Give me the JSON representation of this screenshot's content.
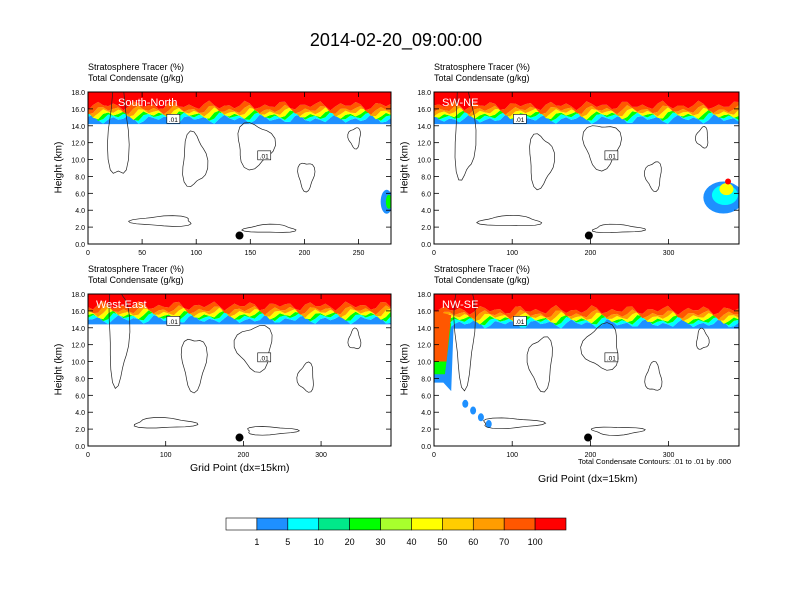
{
  "title": "2014-02-20_09:00:00",
  "panel_subtitle_1": "Stratosphere Tracer   (%)",
  "panel_subtitle_2": "Total Condensate   (g/kg)",
  "y_axis_label": "Height (km)",
  "x_axis_label": "Grid Point (dx=15km)",
  "contour_footnote": "Total Condensate Contours: .01 to .01 by .000",
  "contour_level_label": ".01",
  "colors": {
    "levels": [
      "#ffffff",
      "#1e90ff",
      "#00ffff",
      "#00e98a",
      "#00ff00",
      "#a8ff2d",
      "#ffff00",
      "#ffcd00",
      "#ff9d00",
      "#ff5700",
      "#ff0000"
    ]
  },
  "colorbar_labels": [
    "1",
    "5",
    "10",
    "20",
    "30",
    "40",
    "50",
    "60",
    "70",
    "100"
  ],
  "chart_data": [
    {
      "type": "heatmap",
      "name": "South-North",
      "xlim": [
        0,
        280
      ],
      "ylim": [
        0,
        18
      ],
      "x_ticks": [
        "0",
        "50",
        "100",
        "150",
        "200",
        "250"
      ],
      "x_tick_values": [
        0,
        50,
        100,
        150,
        200,
        250
      ],
      "y_ticks": [
        "0.0",
        "2.0",
        "4.0",
        "6.0",
        "8.0",
        "10.0",
        "12.0",
        "14.0",
        "16.0",
        "18.0"
      ],
      "marker": [
        140,
        1.0
      ],
      "tropopause_km": 14.8
    },
    {
      "type": "heatmap",
      "name": "SW-NE",
      "xlim": [
        0,
        390
      ],
      "ylim": [
        0,
        18
      ],
      "x_ticks": [
        "0",
        "100",
        "200",
        "300"
      ],
      "x_tick_values": [
        0,
        100,
        200,
        300
      ],
      "y_ticks": [
        "0.0",
        "2.0",
        "4.0",
        "6.0",
        "8.0",
        "10.0",
        "12.0",
        "14.0",
        "16.0",
        "18.0"
      ],
      "marker": [
        198,
        1.0
      ],
      "tropopause_km": 14.8
    },
    {
      "type": "heatmap",
      "name": "West-East",
      "xlim": [
        0,
        390
      ],
      "ylim": [
        0,
        18
      ],
      "x_ticks": [
        "0",
        "100",
        "200",
        "300"
      ],
      "x_tick_values": [
        0,
        100,
        200,
        300
      ],
      "y_ticks": [
        "0.0",
        "2.0",
        "4.0",
        "6.0",
        "8.0",
        "10.0",
        "12.0",
        "14.0",
        "16.0",
        "18.0"
      ],
      "marker": [
        195,
        1.0
      ],
      "tropopause_km": 15.0
    },
    {
      "type": "heatmap",
      "name": "NW-SE",
      "xlim": [
        0,
        390
      ],
      "ylim": [
        0,
        18
      ],
      "x_ticks": [
        "0",
        "100",
        "200",
        "300"
      ],
      "x_tick_values": [
        0,
        100,
        200,
        300
      ],
      "y_ticks": [
        "0.0",
        "2.0",
        "4.0",
        "6.0",
        "8.0",
        "10.0",
        "12.0",
        "14.0",
        "16.0",
        "18.0"
      ],
      "marker": [
        197,
        1.0
      ],
      "tropopause_km": 14.5
    }
  ]
}
